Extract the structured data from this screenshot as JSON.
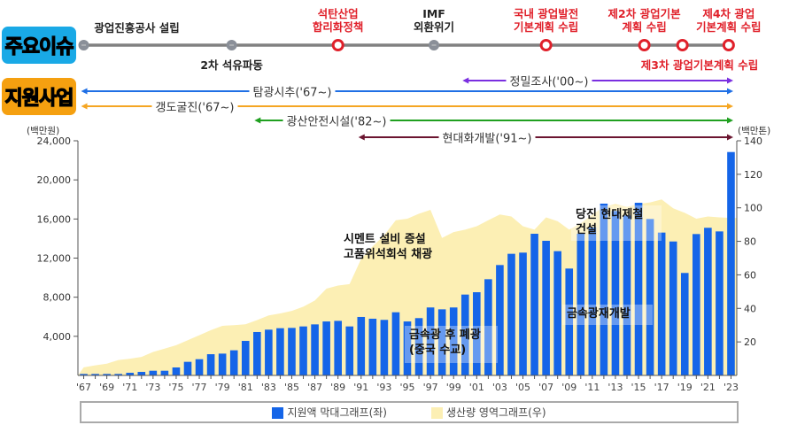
{
  "badges": {
    "issues": "주요이슈",
    "support": "지원사업",
    "issues_color": "#19a9e6",
    "support_color": "#f5a010"
  },
  "events": [
    {
      "label1": "광업진흥공사 설립",
      "label2": "",
      "year": 1967,
      "type": "black",
      "pos": "above"
    },
    {
      "label1": "2차 석유파동",
      "label2": "",
      "year": 1979.8,
      "type": "black",
      "pos": "below"
    },
    {
      "label1": "석탄산업",
      "label2": "합리화정책",
      "year": 1989,
      "type": "red",
      "pos": "above"
    },
    {
      "label1": "IMF",
      "label2": "외환위기",
      "year": 1997.3,
      "type": "black",
      "pos": "above"
    },
    {
      "label1": "국내 광업발전",
      "label2": "기본계획 수립",
      "year": 2007,
      "type": "red",
      "pos": "above"
    },
    {
      "label1": "제2차 광업기본",
      "label2": "계획 수립",
      "year": 2015.5,
      "type": "red",
      "pos": "above"
    },
    {
      "label1": "제3차 광업기본계획 수립",
      "label2": "",
      "year": 2018.8,
      "type": "red",
      "pos": "below"
    },
    {
      "label1": "제4차 광업",
      "label2": "기본계획 수립",
      "year": 2022.8,
      "type": "red",
      "pos": "above"
    }
  ],
  "programs": [
    {
      "label": "정밀조사('00~)",
      "start": 2000,
      "both": true,
      "color": "#7a2fe0",
      "row": 0
    },
    {
      "label": "탐광시추('67~)",
      "start": 1967,
      "both": true,
      "color": "#1f6fe5",
      "row": 1
    },
    {
      "label": "갱도굴진('67~)",
      "start": 1967,
      "both": true,
      "color": "#f5a623",
      "row": 2
    },
    {
      "label": "광산안전시설('82~)",
      "start": 1982.5,
      "both": true,
      "color": "#20a020",
      "row": 3
    },
    {
      "label": "현대화개발('91~)",
      "start": 1991,
      "both": true,
      "color": "#6b1530",
      "row": 4
    }
  ],
  "chart_data": {
    "type": "bar+area",
    "left_unit": "(백만원)",
    "right_unit": "(백만톤)",
    "ylim_left": [
      0,
      24000
    ],
    "ylim_right": [
      0,
      140
    ],
    "left_ticks": [
      "4,000",
      "8,000",
      "12,000",
      "16,000",
      "20,000",
      "24,000"
    ],
    "left_tick_values": [
      4000,
      8000,
      12000,
      16000,
      20000,
      24000
    ],
    "right_ticks": [
      "20",
      "40",
      "60",
      "80",
      "100",
      "120",
      "140"
    ],
    "right_tick_values": [
      20,
      40,
      60,
      80,
      100,
      120,
      140
    ],
    "x_tick_labels": [
      "'67",
      "'69",
      "'71",
      "'73",
      "'75",
      "'77",
      "'79",
      "'81",
      "'83",
      "'85",
      "'87",
      "'89",
      "'91",
      "'93",
      "'95",
      "'97",
      "'99",
      "'01",
      "'03",
      "'05",
      "'07",
      "'09",
      "'11",
      "'13",
      "'15",
      "'17",
      "'19",
      "'21",
      "'23"
    ],
    "years": [
      1967,
      1968,
      1969,
      1970,
      1971,
      1972,
      1973,
      1974,
      1975,
      1976,
      1977,
      1978,
      1979,
      1980,
      1981,
      1982,
      1983,
      1984,
      1985,
      1986,
      1987,
      1988,
      1989,
      1990,
      1991,
      1992,
      1993,
      1994,
      1995,
      1996,
      1997,
      1998,
      1999,
      2000,
      2001,
      2002,
      2003,
      2004,
      2005,
      2006,
      2007,
      2008,
      2009,
      2010,
      2011,
      2012,
      2013,
      2014,
      2015,
      2016,
      2017,
      2018,
      2019,
      2020,
      2021,
      2022,
      2023
    ],
    "series": [
      {
        "name": "지원액 막대그래프(좌)",
        "kind": "bar",
        "axis": "left",
        "color": "#1565e8",
        "values": [
          150,
          150,
          150,
          150,
          270,
          360,
          480,
          480,
          815,
          1390,
          1660,
          2170,
          2230,
          2570,
          3530,
          4440,
          4680,
          4830,
          4860,
          5010,
          5220,
          5520,
          5580,
          5010,
          5980,
          5800,
          5680,
          6460,
          5520,
          5860,
          6950,
          6760,
          6950,
          8270,
          8510,
          9840,
          11290,
          12440,
          12560,
          14490,
          13770,
          12710,
          10930,
          14490,
          15150,
          17570,
          16820,
          16360,
          17660,
          16000,
          14610,
          13700,
          10480,
          14460,
          15100,
          14730,
          22850
        ]
      },
      {
        "name": "생산량 영역그래프(우)",
        "kind": "area",
        "axis": "right",
        "color": "#fcefb4",
        "values": [
          4.8,
          6,
          7,
          9.2,
          10,
          11,
          14,
          16,
          18,
          21,
          24,
          27,
          29.6,
          30,
          30.5,
          33,
          35.8,
          37,
          38.5,
          41,
          44.7,
          51.8,
          53.6,
          54.5,
          69.5,
          77,
          83.7,
          92.6,
          93.5,
          96.5,
          98.8,
          82,
          85.5,
          87,
          89,
          92.6,
          96,
          94.8,
          89,
          87,
          94.3,
          92,
          87,
          90.8,
          96,
          100.6,
          102.3,
          100.6,
          102.3,
          103.2,
          105,
          99.7,
          97,
          93.5,
          94.8,
          94.3,
          94
        ]
      }
    ],
    "annotations": [
      {
        "text1": "시멘트 설비 증설",
        "text2": "고품위석회석 채광",
        "boxed": false
      },
      {
        "text1": "금속광 후 폐광",
        "text2": "(중국 수교)",
        "boxed": true
      },
      {
        "text1": "당진 현대제철",
        "text2": "건설",
        "boxed": true
      },
      {
        "text1": "금속광재개발",
        "text2": "",
        "boxed": true
      }
    ]
  }
}
